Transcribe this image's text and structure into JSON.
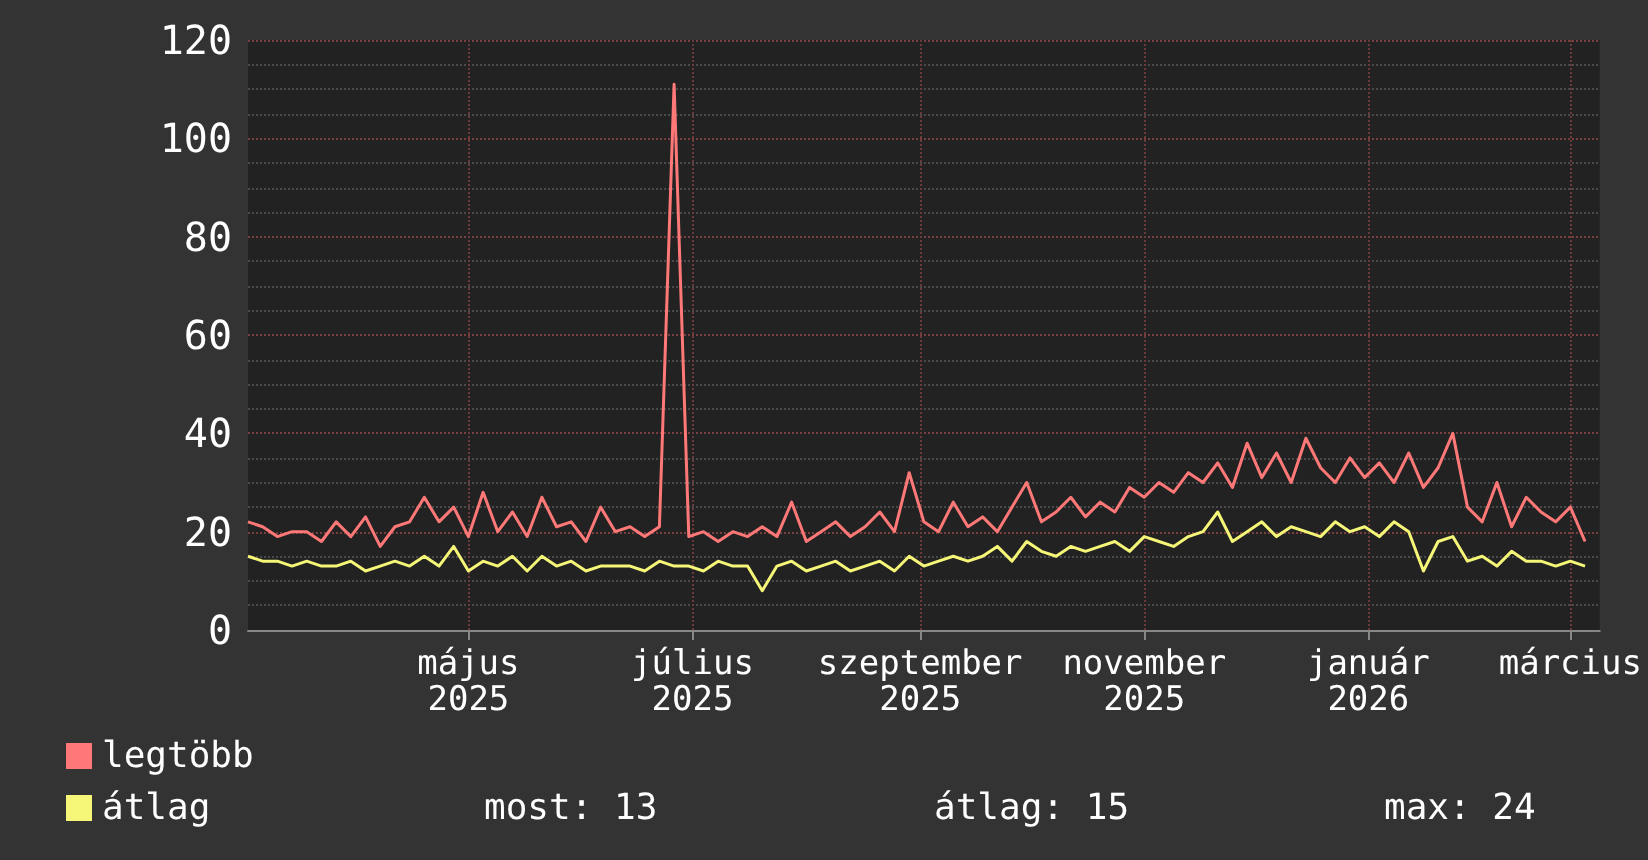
{
  "chart_data": {
    "type": "line",
    "x": [
      "2025-03-17",
      "2025-03-21",
      "2025-03-25",
      "2025-03-29",
      "2025-04-02",
      "2025-04-06",
      "2025-04-10",
      "2025-04-14",
      "2025-04-18",
      "2025-04-22",
      "2025-04-26",
      "2025-04-30",
      "2025-05-04",
      "2025-05-08",
      "2025-05-12",
      "2025-05-16",
      "2025-05-20",
      "2025-05-24",
      "2025-05-28",
      "2025-06-01",
      "2025-06-05",
      "2025-06-09",
      "2025-06-13",
      "2025-06-17",
      "2025-06-21",
      "2025-06-25",
      "2025-06-29",
      "2025-07-03",
      "2025-07-07",
      "2025-07-11",
      "2025-07-15",
      "2025-07-19",
      "2025-07-23",
      "2025-07-27",
      "2025-07-31",
      "2025-08-04",
      "2025-08-08",
      "2025-08-12",
      "2025-08-16",
      "2025-08-20",
      "2025-08-24",
      "2025-08-28",
      "2025-09-01",
      "2025-09-05",
      "2025-09-09",
      "2025-09-13",
      "2025-09-17",
      "2025-09-21",
      "2025-09-25",
      "2025-09-29",
      "2025-10-03",
      "2025-10-07",
      "2025-10-11",
      "2025-10-15",
      "2025-10-19",
      "2025-10-23",
      "2025-10-27",
      "2025-10-31",
      "2025-11-04",
      "2025-11-08",
      "2025-11-12",
      "2025-11-16",
      "2025-11-20",
      "2025-11-24",
      "2025-11-28",
      "2025-12-02",
      "2025-12-06",
      "2025-12-10",
      "2025-12-14",
      "2025-12-18",
      "2025-12-22",
      "2025-12-26",
      "2025-12-30",
      "2026-01-03",
      "2026-01-07",
      "2026-01-11",
      "2026-01-15",
      "2026-01-19",
      "2026-01-23",
      "2026-01-27",
      "2026-01-31",
      "2026-02-04",
      "2026-02-08",
      "2026-02-12",
      "2026-02-16",
      "2026-02-20",
      "2026-02-24",
      "2026-02-28",
      "2026-03-04",
      "2026-03-08",
      "2026-03-12",
      "2026-03-16"
    ],
    "series": [
      {
        "name": "legtöbb",
        "color": "#ff7878",
        "values": [
          22,
          21,
          19,
          20,
          20,
          18,
          22,
          19,
          23,
          17,
          21,
          22,
          27,
          22,
          25,
          19,
          28,
          20,
          24,
          19,
          27,
          21,
          22,
          18,
          25,
          20,
          21,
          19,
          21,
          111,
          19,
          20,
          18,
          20,
          19,
          21,
          19,
          26,
          18,
          20,
          22,
          19,
          21,
          24,
          20,
          32,
          22,
          20,
          26,
          21,
          23,
          20,
          25,
          30,
          22,
          24,
          27,
          23,
          26,
          24,
          29,
          27,
          30,
          28,
          32,
          30,
          34,
          29,
          38,
          31,
          36,
          30,
          39,
          33,
          30,
          35,
          31,
          34,
          30,
          36,
          29,
          33,
          40,
          25,
          22,
          30,
          21,
          27,
          24,
          22,
          25,
          18
        ]
      },
      {
        "name": "átlag",
        "color": "#f5f578",
        "values": [
          15,
          14,
          14,
          13,
          14,
          13,
          13,
          14,
          12,
          13,
          14,
          13,
          15,
          13,
          17,
          12,
          14,
          13,
          15,
          12,
          15,
          13,
          14,
          12,
          13,
          13,
          13,
          12,
          14,
          13,
          13,
          12,
          14,
          13,
          13,
          8,
          13,
          14,
          12,
          13,
          14,
          12,
          13,
          14,
          12,
          15,
          13,
          14,
          15,
          14,
          15,
          17,
          14,
          18,
          16,
          15,
          17,
          16,
          17,
          18,
          16,
          19,
          18,
          17,
          19,
          20,
          24,
          18,
          20,
          22,
          19,
          21,
          20,
          19,
          22,
          20,
          21,
          19,
          22,
          20,
          12,
          18,
          19,
          14,
          15,
          13,
          16,
          14,
          14,
          13,
          14,
          13
        ]
      }
    ],
    "xlim": [
      "2025-03-17",
      "2026-03-20"
    ],
    "xticks": [
      {
        "value": "2025-05-16",
        "label": "május 2025"
      },
      {
        "value": "2025-07-16",
        "label": "július 2025"
      },
      {
        "value": "2025-09-16",
        "label": "szeptember 2025"
      },
      {
        "value": "2025-11-16",
        "label": "november 2025"
      },
      {
        "value": "2026-01-16",
        "label": "január 2026"
      },
      {
        "value": "2026-03-12",
        "label": "március"
      }
    ],
    "ylim": [
      0,
      120
    ],
    "yticks": [
      0,
      20,
      40,
      60,
      80,
      100,
      120
    ],
    "grid": true,
    "legend": "bottom left",
    "marker": "none",
    "line_style": "solid",
    "annotations": [
      "most: 13",
      "átlag: 15",
      "max: 24"
    ]
  }
}
